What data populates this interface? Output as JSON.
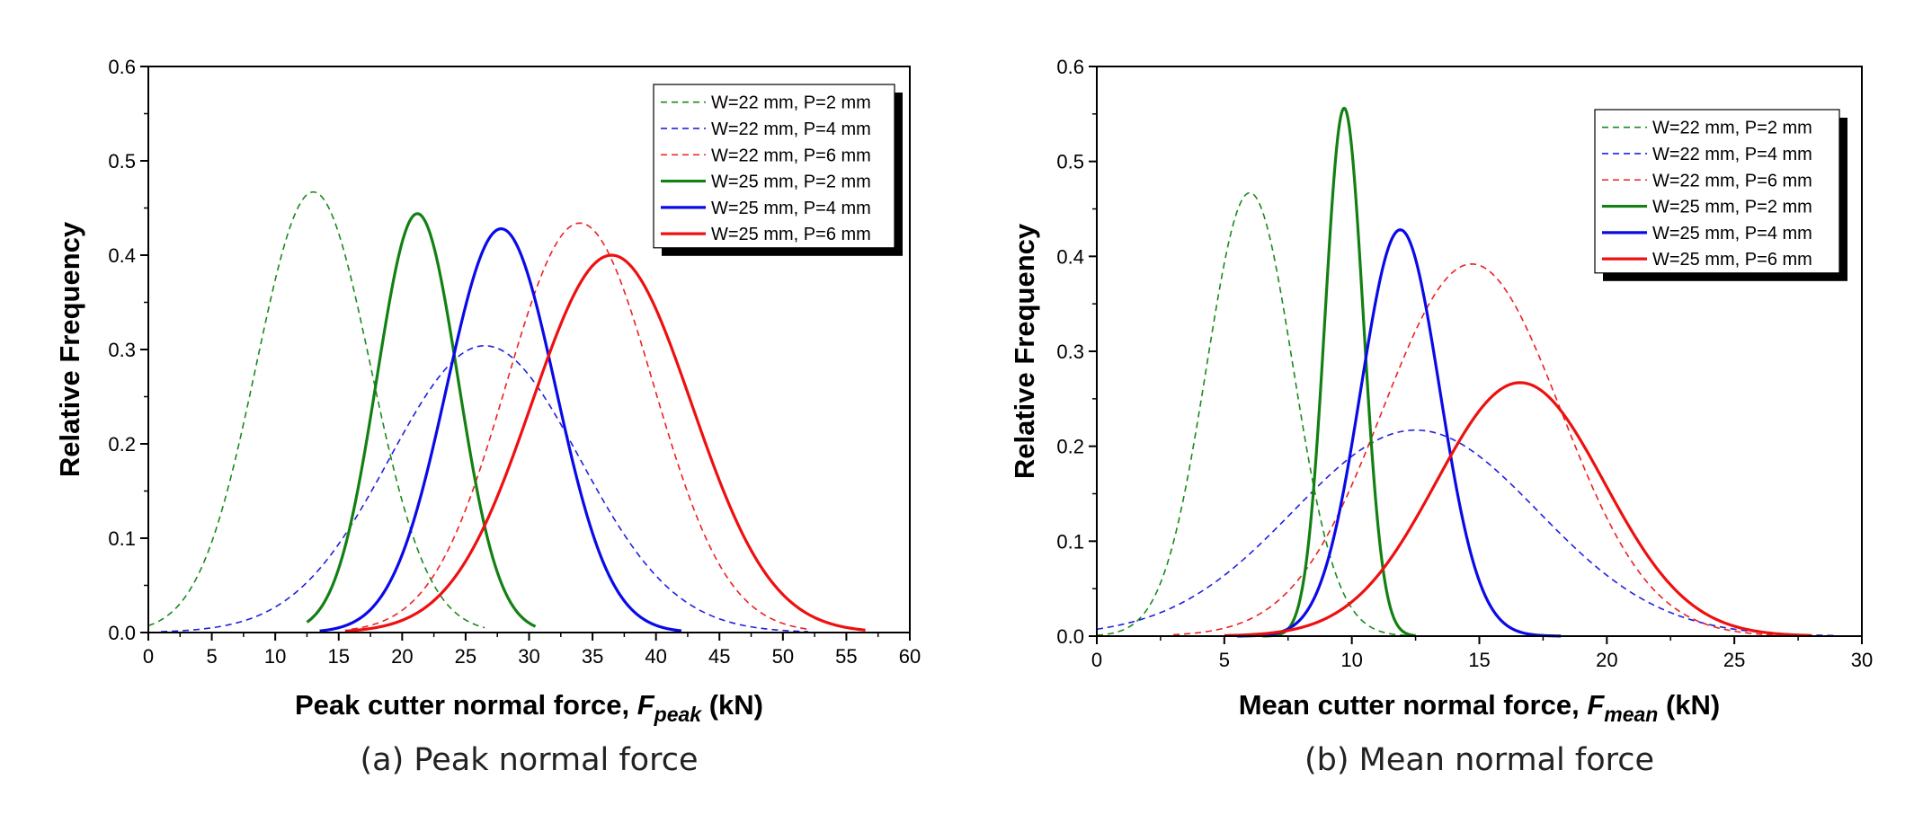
{
  "chart_data": [
    {
      "type": "line",
      "id": "a",
      "caption": "(a) Peak normal force",
      "xlabel": {
        "main": "Peak cutter normal force, ",
        "var": "F",
        "sub": "peak",
        "unit": " (kN)"
      },
      "ylabel": "Relative Frequency",
      "xlim": [
        0,
        60
      ],
      "ylim": [
        0,
        0.6
      ],
      "xticks": [
        "0",
        "5",
        "10",
        "15",
        "20",
        "25",
        "30",
        "35",
        "40",
        "45",
        "50",
        "55",
        "60"
      ],
      "yticks": [
        "0.0",
        "0.1",
        "0.2",
        "0.3",
        "0.4",
        "0.5",
        "0.6"
      ],
      "series": [
        {
          "name": "W=22 mm, P=2 mm",
          "color": "#1a8a1a",
          "style": "dashed",
          "mean": 13.0,
          "sd": 4.5,
          "peak": 0.467,
          "x_start": 0.0,
          "x_end": 26.5
        },
        {
          "name": "W=22 mm, P=4 mm",
          "color": "#2020e0",
          "style": "dashed",
          "mean": 26.5,
          "sd": 7.5,
          "peak": 0.304,
          "x_start": 1.0,
          "x_end": 52.0
        },
        {
          "name": "W=22 mm, P=6 mm",
          "color": "#ee2020",
          "style": "dashed",
          "mean": 34.0,
          "sd": 5.8,
          "peak": 0.434,
          "x_start": 16.0,
          "x_end": 52.0
        },
        {
          "name": "W=25 mm, P=2 mm",
          "color": "#138013",
          "style": "solid",
          "mean": 21.2,
          "sd": 3.2,
          "peak": 0.444,
          "x_start": 12.5,
          "x_end": 30.5
        },
        {
          "name": "W=25 mm, P=4 mm",
          "color": "#0a0ae8",
          "style": "solid",
          "mean": 27.8,
          "sd": 4.3,
          "peak": 0.428,
          "x_start": 13.5,
          "x_end": 42.0
        },
        {
          "name": "W=25 mm, P=6 mm",
          "color": "#ee1010",
          "style": "solid",
          "mean": 36.5,
          "sd": 6.3,
          "peak": 0.4,
          "x_start": 15.5,
          "x_end": 56.5
        }
      ]
    },
    {
      "type": "line",
      "id": "b",
      "caption": "(b) Mean normal force",
      "xlabel": {
        "main": "Mean cutter normal force, ",
        "var": "F",
        "sub": "mean",
        "unit": " (kN)"
      },
      "ylabel": "Relative Frequency",
      "xlim": [
        0,
        30
      ],
      "ylim": [
        0,
        0.6
      ],
      "xticks": [
        "0",
        "5",
        "10",
        "15",
        "20",
        "25",
        "30"
      ],
      "yticks": [
        "0.0",
        "0.1",
        "0.2",
        "0.3",
        "0.4",
        "0.5",
        "0.6"
      ],
      "series": [
        {
          "name": "W=22 mm, P=2 mm",
          "color": "#1a8a1a",
          "style": "dashed",
          "mean": 6.0,
          "sd": 1.7,
          "peak": 0.467,
          "x_start": 0.0,
          "x_end": 12.5
        },
        {
          "name": "W=22 mm, P=4 mm",
          "color": "#2020e0",
          "style": "dashed",
          "mean": 12.5,
          "sd": 4.8,
          "peak": 0.217,
          "x_start": 0.0,
          "x_end": 29.0
        },
        {
          "name": "W=22 mm, P=6 mm",
          "color": "#ee2020",
          "style": "dashed",
          "mean": 14.7,
          "sd": 3.5,
          "peak": 0.392,
          "x_start": 3.0,
          "x_end": 28.5
        },
        {
          "name": "W=25 mm, P=2 mm",
          "color": "#138013",
          "style": "solid",
          "mean": 9.7,
          "sd": 0.75,
          "peak": 0.556,
          "x_start": 6.5,
          "x_end": 12.5
        },
        {
          "name": "W=25 mm, P=4 mm",
          "color": "#0a0ae8",
          "style": "solid",
          "mean": 11.9,
          "sd": 1.55,
          "peak": 0.428,
          "x_start": 5.5,
          "x_end": 18.2
        },
        {
          "name": "W=25 mm, P=6 mm",
          "color": "#ee1010",
          "style": "solid",
          "mean": 16.6,
          "sd": 3.3,
          "peak": 0.267,
          "x_start": 5.0,
          "x_end": 28.0
        }
      ]
    }
  ]
}
